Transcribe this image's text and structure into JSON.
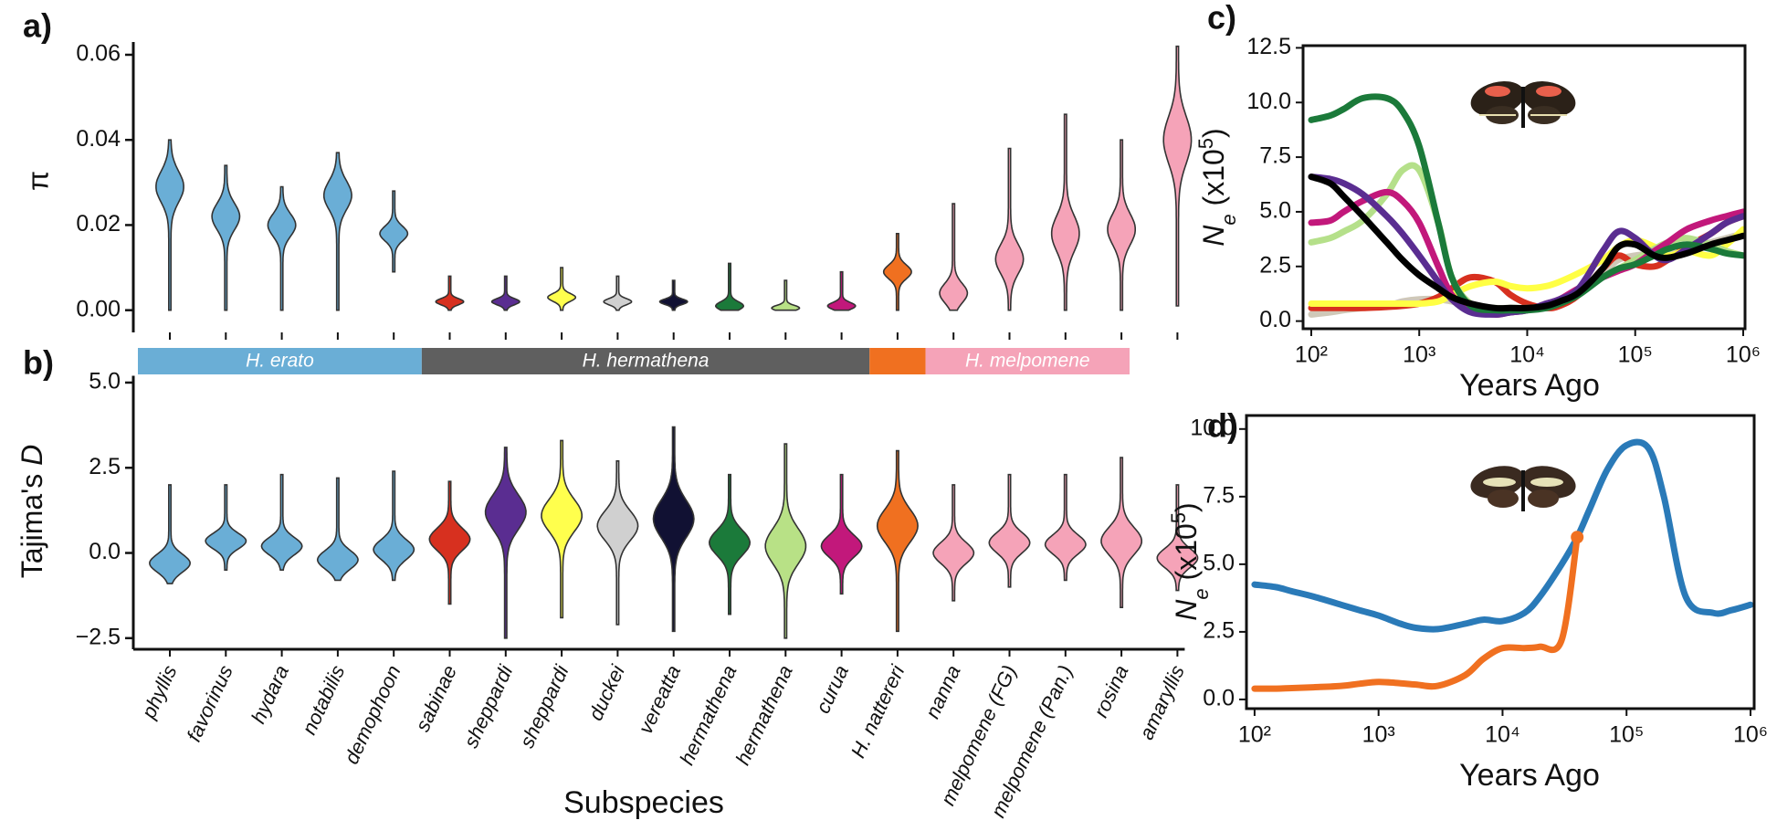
{
  "chart_data": [
    {
      "type": "violin",
      "panel_label": "a)",
      "ylabel": "π",
      "ylim": [
        -0.002,
        0.063
      ],
      "yticks": [
        {
          "value": 0,
          "label": "0.00"
        },
        {
          "value": 0.02,
          "label": "0.02"
        },
        {
          "value": 0.04,
          "label": "0.04"
        },
        {
          "value": 0.06,
          "label": "0.06"
        }
      ],
      "colors": [
        "#6aaed6",
        "#6aaed6",
        "#6aaed6",
        "#6aaed6",
        "#6aaed6",
        "#d7301f",
        "#5a2d91",
        "#ffff4d",
        "#d0d0d0",
        "#111133",
        "#1b7a3a",
        "#b8e186",
        "#c2187b",
        "#f07020",
        "#f5a3b8",
        "#f5a3b8",
        "#f5a3b8",
        "#f5a3b8",
        "#f5a3b8"
      ],
      "min": [
        0,
        0,
        0,
        0,
        0.009,
        0,
        0,
        0,
        0,
        0,
        0,
        0,
        0,
        0,
        0,
        0,
        0,
        0,
        0.001
      ],
      "mode": [
        0.029,
        0.022,
        0.02,
        0.027,
        0.018,
        0.002,
        0.002,
        0.003,
        0.002,
        0.002,
        0.001,
        0.0005,
        0.001,
        0.009,
        0.004,
        0.012,
        0.018,
        0.019,
        0.04
      ],
      "max": [
        0.04,
        0.034,
        0.029,
        0.037,
        0.028,
        0.008,
        0.008,
        0.01,
        0.008,
        0.007,
        0.011,
        0.007,
        0.009,
        0.018,
        0.025,
        0.038,
        0.046,
        0.04,
        0.062
      ]
    },
    {
      "type": "violin",
      "panel_label": "b)",
      "ylabel": [
        "Tajima's ",
        "D"
      ],
      "xlabel": "Subspecies",
      "categories": [
        "phyllis",
        "favorinus",
        "hydara",
        "notabilis",
        "demophoon",
        "sabinae",
        "sheppardi",
        "sheppardi",
        "duckei",
        "vereatta",
        "hermathena",
        "hermathena",
        "curua",
        "H. nattereri",
        "nanna",
        "melpomene (FG)",
        "melpomene (Pan.)",
        "rosina",
        "amaryllis"
      ],
      "groups": [
        {
          "name": "H. erato",
          "color": "#6aaed6",
          "count": 5
        },
        {
          "name": "H. hermathena",
          "color": "#5f5f5f",
          "count": 8
        },
        {
          "name": null,
          "color": "#f07020",
          "count": 1
        },
        {
          "name": "H. melpomene",
          "color": "#f5a3b8",
          "count": 5
        }
      ],
      "ylim": [
        -2.8,
        5.2
      ],
      "yticks": [
        {
          "value": -2.5,
          "label": "−2.5"
        },
        {
          "value": 0,
          "label": "0.0"
        },
        2.5,
        {
          "value": 5,
          "label": "5.0"
        }
      ],
      "colors": [
        "#6aaed6",
        "#6aaed6",
        "#6aaed6",
        "#6aaed6",
        "#6aaed6",
        "#d7301f",
        "#5a2d91",
        "#ffff4d",
        "#d0d0d0",
        "#111133",
        "#1b7a3a",
        "#b8e186",
        "#c2187b",
        "#f07020",
        "#f5a3b8",
        "#f5a3b8",
        "#f5a3b8",
        "#f5a3b8",
        "#f5a3b8"
      ],
      "min": [
        -0.9,
        -0.5,
        -0.5,
        -0.8,
        -0.8,
        -1.5,
        -2.5,
        -1.9,
        -2.1,
        -2.3,
        -1.8,
        -2.5,
        -1.2,
        -2.3,
        -1.4,
        -1.0,
        -0.8,
        -1.6,
        -1.1
      ],
      "mode": [
        -0.3,
        0.35,
        0.2,
        -0.2,
        0.1,
        0.4,
        1.2,
        1.1,
        0.8,
        1.0,
        0.3,
        0.2,
        0.2,
        0.8,
        0.0,
        0.3,
        0.25,
        0.35,
        -0.15
      ],
      "max": [
        2.0,
        2.0,
        2.3,
        2.2,
        2.4,
        2.1,
        3.1,
        3.3,
        2.7,
        3.7,
        2.3,
        3.2,
        2.3,
        3.0,
        2.0,
        2.3,
        2.3,
        2.8,
        2.0
      ]
    },
    {
      "type": "line",
      "panel_label": "c)",
      "ylabel": [
        "N",
        "e",
        " (x10",
        "5",
        ")"
      ],
      "xlabel": "Years Ago",
      "xscale": "log",
      "xlim": [
        84,
        1040000
      ],
      "ylim": [
        -0.35,
        12.6
      ],
      "xticks": [
        {
          "value": 100,
          "label": "10²"
        },
        {
          "value": 1000,
          "label": "10³"
        },
        {
          "value": 10000,
          "label": "10⁴"
        },
        {
          "value": 100000,
          "label": "10⁵"
        },
        {
          "value": 1000000,
          "label": "10⁶"
        }
      ],
      "yticks": [
        {
          "value": 0,
          "label": "0.0"
        },
        2.5,
        {
          "value": 5,
          "label": "5.0"
        },
        7.5,
        {
          "value": 10,
          "label": "10.0"
        },
        12.5
      ],
      "x": [
        100,
        150,
        200,
        300,
        500,
        700,
        1000,
        1500,
        2000,
        3000,
        5000,
        7000,
        10000,
        15000,
        20000,
        30000,
        50000,
        70000,
        100000,
        150000,
        200000,
        300000,
        500000,
        700000,
        1000000
      ],
      "series": [
        {
          "color": "#cfc8b8",
          "values": [
            0.3,
            0.4,
            0.5,
            0.6,
            0.7,
            0.9,
            1.0,
            1.0,
            0.9,
            0.7,
            0.6,
            0.6,
            0.6,
            0.7,
            0.9,
            1.3,
            2.2,
            2.8,
            3.0,
            3.1,
            3.2,
            3.4,
            3.6,
            3.8,
            4.0
          ]
        },
        {
          "color": "#d7301f",
          "values": [
            0.6,
            0.6,
            0.6,
            0.6,
            0.65,
            0.7,
            0.8,
            1.1,
            1.5,
            2.0,
            1.8,
            1.2,
            0.8,
            0.6,
            0.7,
            1.2,
            2.4,
            3.0,
            2.6,
            2.5,
            2.8,
            3.4,
            4.0,
            4.5,
            4.8
          ]
        },
        {
          "color": "#ffff44",
          "values": [
            0.8,
            0.8,
            0.8,
            0.8,
            0.8,
            0.8,
            0.8,
            0.9,
            1.2,
            1.6,
            1.8,
            1.6,
            1.5,
            1.6,
            1.8,
            2.2,
            2.8,
            3.4,
            3.7,
            3.4,
            3.0,
            3.2,
            3.0,
            3.5,
            4.2
          ]
        },
        {
          "color": "#b5e08a",
          "values": [
            3.6,
            3.8,
            4.1,
            4.6,
            5.8,
            6.9,
            6.9,
            4.5,
            2.0,
            0.8,
            0.6,
            0.6,
            0.6,
            0.7,
            0.9,
            1.3,
            2.0,
            2.4,
            2.8,
            3.3,
            3.6,
            3.8,
            3.5,
            3.2,
            3.0
          ]
        },
        {
          "color": "#c2187b",
          "values": [
            4.5,
            4.6,
            5.0,
            5.5,
            5.9,
            5.5,
            4.5,
            2.5,
            1.2,
            0.5,
            0.3,
            0.4,
            0.5,
            0.8,
            1.0,
            1.5,
            2.0,
            2.3,
            2.6,
            3.2,
            3.6,
            4.2,
            4.6,
            4.8,
            5.0
          ]
        },
        {
          "color": "#5a2d91",
          "values": [
            6.6,
            6.5,
            6.3,
            5.8,
            4.8,
            4.0,
            3.0,
            1.8,
            1.0,
            0.4,
            0.3,
            0.4,
            0.5,
            0.8,
            1.0,
            1.5,
            3.2,
            4.1,
            3.8,
            3.0,
            2.8,
            3.3,
            4.0,
            4.5,
            4.8
          ]
        },
        {
          "color": "#1b7a3a",
          "values": [
            9.2,
            9.4,
            9.7,
            10.2,
            10.2,
            9.6,
            8.0,
            4.5,
            2.0,
            0.7,
            0.5,
            0.5,
            0.5,
            0.6,
            0.8,
            1.2,
            2.0,
            2.4,
            2.6,
            3.0,
            3.3,
            3.5,
            3.3,
            3.1,
            3.0
          ]
        },
        {
          "color": "#000000",
          "values": [
            6.6,
            6.3,
            5.7,
            4.8,
            3.6,
            2.8,
            2.1,
            1.5,
            1.1,
            0.8,
            0.6,
            0.6,
            0.6,
            0.7,
            0.9,
            1.3,
            2.4,
            3.4,
            3.5,
            3.0,
            2.9,
            3.1,
            3.5,
            3.7,
            3.9
          ]
        }
      ]
    },
    {
      "type": "line",
      "panel_label": "d)",
      "ylabel": [
        "N",
        "e",
        " (x10",
        "5",
        ")"
      ],
      "xlabel": "Years Ago",
      "xscale": "log",
      "xlim": [
        86,
        1070000
      ],
      "ylim": [
        -0.34,
        10.5
      ],
      "xticks": [
        {
          "value": 100,
          "label": "10²"
        },
        {
          "value": 1000,
          "label": "10³"
        },
        {
          "value": 10000,
          "label": "10⁴"
        },
        {
          "value": 100000,
          "label": "10⁵"
        },
        {
          "value": 1000000,
          "label": "10⁶"
        }
      ],
      "yticks": [
        {
          "value": 0,
          "label": "0.0"
        },
        2.5,
        {
          "value": 5,
          "label": "5.0"
        },
        7.5,
        {
          "value": 10,
          "label": "10.0"
        }
      ],
      "x": [
        100,
        150,
        200,
        300,
        500,
        700,
        1000,
        1500,
        2000,
        3000,
        5000,
        7000,
        10000,
        15000,
        20000,
        30000,
        40000,
        50000,
        70000,
        100000,
        150000,
        200000,
        300000,
        500000,
        700000,
        1000000
      ],
      "end_marker": true,
      "series": [
        {
          "color": "#2a7ab8",
          "values": [
            4.25,
            4.15,
            4.0,
            3.8,
            3.5,
            3.3,
            3.1,
            2.8,
            2.65,
            2.6,
            2.8,
            2.95,
            2.9,
            3.2,
            3.8,
            5.0,
            6.0,
            7.0,
            8.5,
            9.4,
            9.3,
            7.5,
            3.8,
            3.2,
            3.3,
            3.5
          ]
        },
        {
          "color": "#f07020",
          "values": [
            0.4,
            0.4,
            0.42,
            0.45,
            0.5,
            0.58,
            0.65,
            0.6,
            0.55,
            0.5,
            0.9,
            1.5,
            1.9,
            1.9,
            1.95,
            2.2,
            6.0,
            null,
            null,
            null,
            null,
            null,
            null,
            null,
            null,
            null
          ]
        }
      ]
    }
  ]
}
